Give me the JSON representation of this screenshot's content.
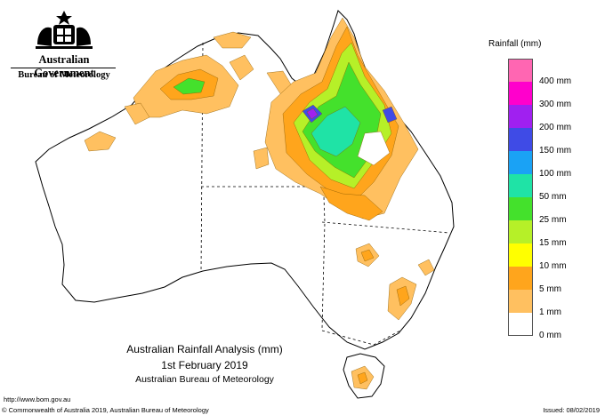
{
  "header": {
    "gov_name": "Australian Government",
    "bureau": "Bureau of Meteorology"
  },
  "legend": {
    "title": "Rainfall (mm)",
    "items": [
      {
        "label": "",
        "color": "#ff66b2"
      },
      {
        "label": "400 mm",
        "color": "#ff00cc"
      },
      {
        "label": "300 mm",
        "color": "#a020f0"
      },
      {
        "label": "200 mm",
        "color": "#3f4be6"
      },
      {
        "label": "150 mm",
        "color": "#1aa2f5"
      },
      {
        "label": "100 mm",
        "color": "#1fe3a6"
      },
      {
        "label": "50 mm",
        "color": "#44e12c"
      },
      {
        "label": "25 mm",
        "color": "#b6f028"
      },
      {
        "label": "15 mm",
        "color": "#ffff00"
      },
      {
        "label": "10 mm",
        "color": "#ffa51c"
      },
      {
        "label": "5 mm",
        "color": "#ffc060"
      },
      {
        "label": "1 mm",
        "color": "#ffffff"
      },
      {
        "label": "0 mm",
        "color": ""
      }
    ]
  },
  "caption": {
    "title": "Australian Rainfall Analysis (mm)",
    "date": "1st February 2019",
    "agency": "Australian Bureau of Meteorology"
  },
  "footer": {
    "url": "http://www.bom.gov.au",
    "copyright": "© Commonwealth of Australia 2019, Australian Bureau of Meteorology",
    "issued": "Issued: 08/02/2019"
  }
}
